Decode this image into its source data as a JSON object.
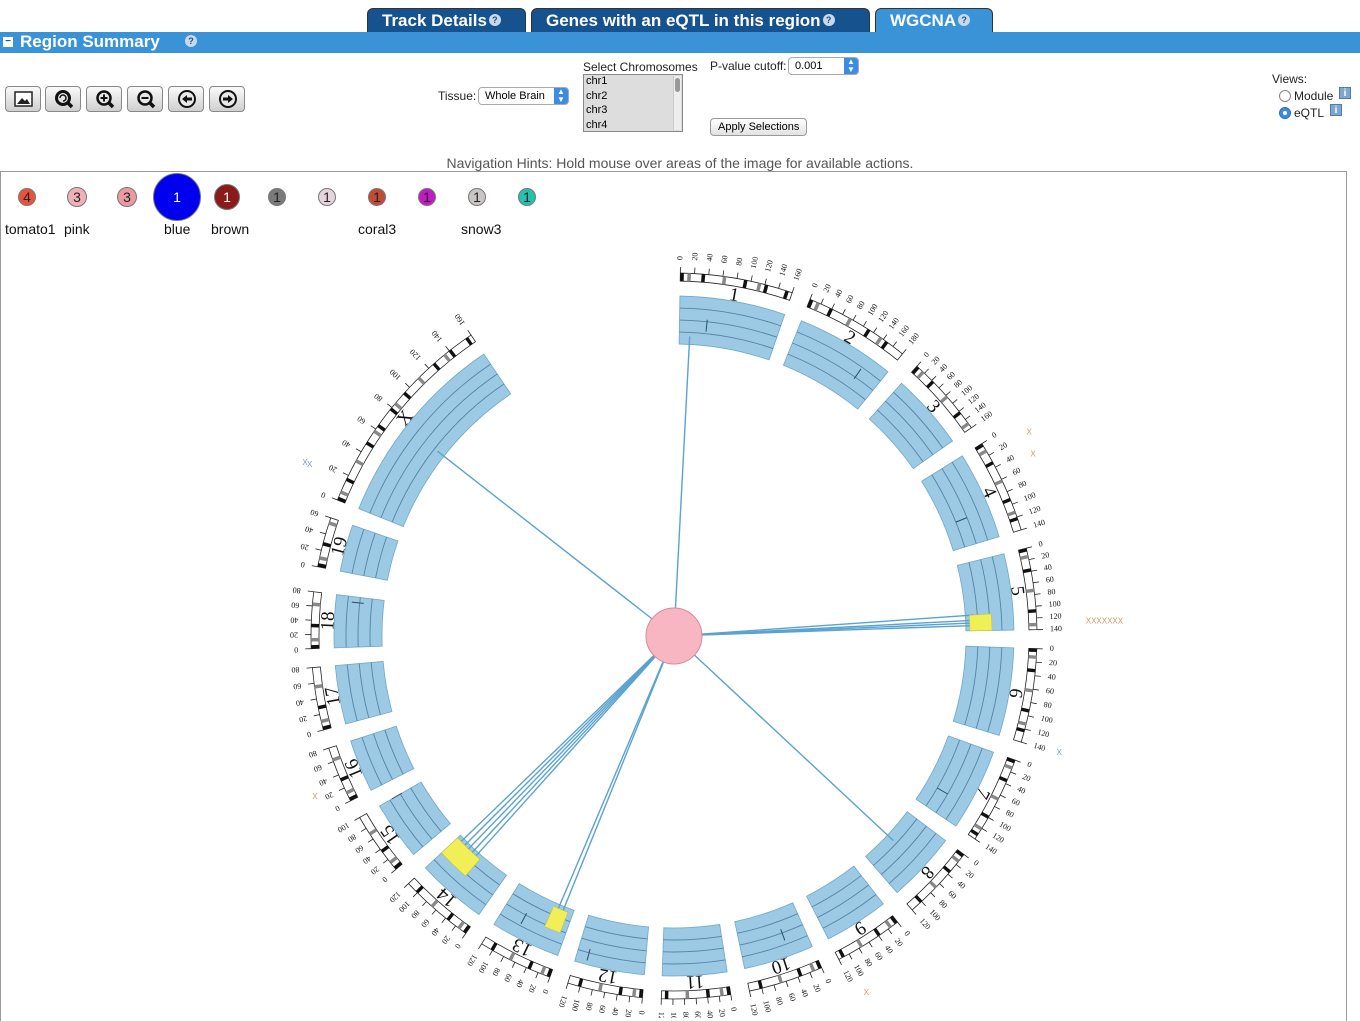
{
  "tabs": [
    {
      "label": "Track Details"
    },
    {
      "label": "Genes with an eQTL in this region"
    },
    {
      "label": "WGCNA"
    }
  ],
  "summary": {
    "collapse": "−",
    "title": "Region Summary",
    "help": "?"
  },
  "toolbar": {
    "buttons": [
      "image-icon",
      "reset-zoom-icon",
      "zoom-in-icon",
      "zoom-out-icon",
      "rotate-left-icon",
      "rotate-right-icon"
    ]
  },
  "controls": {
    "tissue_label": "Tissue:",
    "tissue_value": "Whole Brain",
    "chromosomes_label": "Select Chromosomes",
    "chromosomes": [
      "chr1",
      "chr2",
      "chr3",
      "chr4"
    ],
    "pvalue_label": "P-value cutoff:",
    "pvalue_value": "0.001",
    "apply_label": "Apply Selections"
  },
  "views": {
    "label": "Views:",
    "options": [
      {
        "label": "Module",
        "selected": false
      },
      {
        "label": "eQTL",
        "selected": true
      }
    ],
    "info": "i"
  },
  "hints": "Navigation Hints: Hold mouse over areas of the image for available actions.",
  "modules": [
    {
      "count": "4",
      "name": "tomato1",
      "color": "#e8533a"
    },
    {
      "count": "3",
      "name": "pink",
      "color": "#efb0b8"
    },
    {
      "count": "3",
      "name": "",
      "color": "#e99aa3"
    },
    {
      "count": "1",
      "name": "blue",
      "color": "#0000ee"
    },
    {
      "count": "1",
      "name": "brown",
      "color": "#8b1a1a"
    },
    {
      "count": "1",
      "name": "",
      "color": "#7a7a7a"
    },
    {
      "count": "1",
      "name": "",
      "color": "#e6d4dc"
    },
    {
      "count": "1",
      "name": "coral3",
      "color": "#c24b35"
    },
    {
      "count": "1",
      "name": "",
      "color": "#c41ac4"
    },
    {
      "count": "1",
      "name": "snow3",
      "color": "#c9c5c5"
    },
    {
      "count": "1",
      "name": "",
      "color": "#24c0b0"
    }
  ],
  "circos": {
    "center_color": "#f7b6c1",
    "track_color": "#9cc9e3",
    "link_color": "#5aa2cf",
    "chromosomes": [
      "1",
      "2",
      "3",
      "4",
      "5",
      "6",
      "7",
      "8",
      "9",
      "10",
      "11",
      "12",
      "13",
      "14",
      "15",
      "16",
      "17",
      "18",
      "19",
      "X"
    ],
    "markers": [
      "X",
      "X",
      "X",
      "XXXXXXX",
      "X",
      "X",
      "X",
      "X",
      "X"
    ],
    "tick_labels": {
      "1": [
        "0",
        "20",
        "40",
        "60",
        "80",
        "100",
        "120",
        "140",
        "160"
      ],
      "2": [
        "0",
        "20",
        "40",
        "60",
        "80",
        "100",
        "120",
        "140",
        "160",
        "180"
      ],
      "3": [
        "0",
        "20",
        "40",
        "60",
        "80",
        "100",
        "120",
        "140",
        "160"
      ],
      "4": [
        "0",
        "20",
        "40",
        "60",
        "80",
        "100",
        "120",
        "140"
      ],
      "5": [
        "0",
        "20",
        "40",
        "60",
        "80",
        "100",
        "120",
        "140"
      ],
      "6": [
        "0",
        "20",
        "40",
        "60",
        "80",
        "100",
        "120",
        "140"
      ],
      "7": [
        "0",
        "20",
        "40",
        "60",
        "80",
        "100",
        "120",
        "140"
      ],
      "8": [
        "0",
        "20",
        "40",
        "60",
        "80",
        "100",
        "120"
      ],
      "9": [
        "0",
        "20",
        "40",
        "60",
        "80",
        "100",
        "120"
      ],
      "10": [
        "0",
        "20",
        "40",
        "60",
        "80",
        "100",
        "120"
      ],
      "11": [
        "0",
        "20",
        "40",
        "60",
        "80",
        "100",
        "120"
      ],
      "12": [
        "0",
        "20",
        "40",
        "60",
        "80",
        "100",
        "120"
      ],
      "13": [
        "0",
        "20",
        "40",
        "60",
        "80",
        "100",
        "120"
      ],
      "14": [
        "0",
        "20",
        "40",
        "60",
        "80",
        "100",
        "120"
      ],
      "15": [
        "0",
        "20",
        "40",
        "60",
        "80",
        "100"
      ],
      "16": [
        "0",
        "20",
        "40",
        "60",
        "80"
      ],
      "17": [
        "0",
        "20",
        "40",
        "60",
        "80"
      ],
      "18": [
        "0",
        "20",
        "40",
        "60",
        "80"
      ],
      "19": [
        "0",
        "20",
        "40",
        "60"
      ],
      "X": [
        "0",
        "20",
        "40",
        "60",
        "80",
        "100",
        "120",
        "140",
        "160"
      ]
    }
  }
}
